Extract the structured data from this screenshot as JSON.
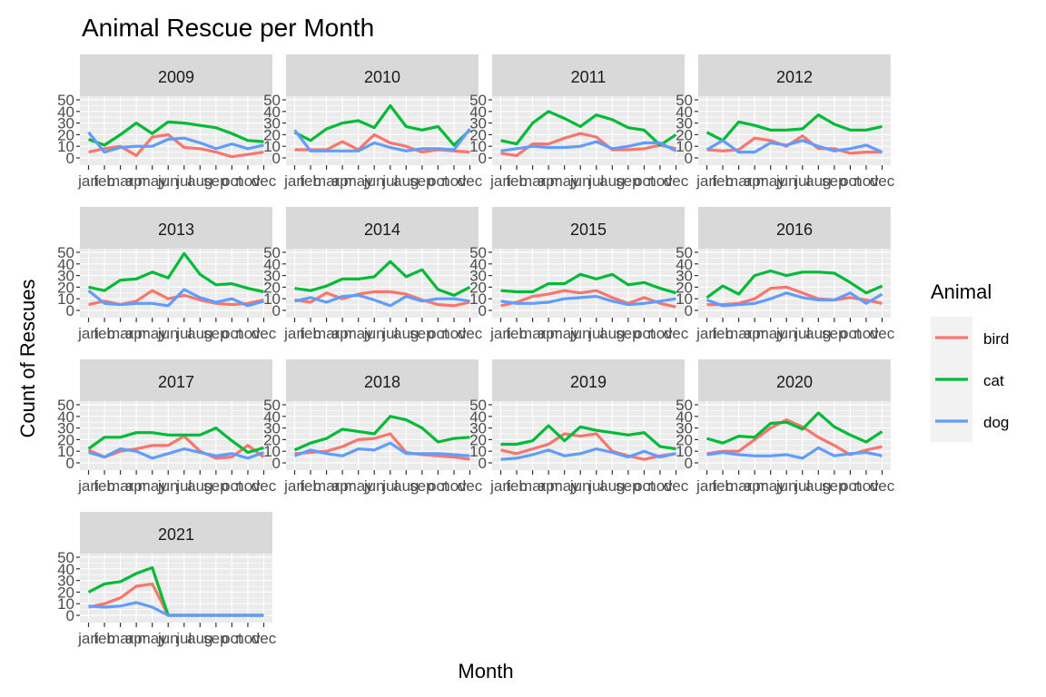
{
  "chart_data": {
    "type": "line",
    "title": "Animal Rescue per Month",
    "xlabel": "Month",
    "ylabel": "Count of Rescues",
    "categories": [
      "jan",
      "feb",
      "mar",
      "apr",
      "may",
      "jun",
      "jul",
      "aug",
      "sep",
      "oct",
      "nov",
      "dec"
    ],
    "ylim": [
      0,
      50
    ],
    "yticks": [
      0,
      10,
      20,
      30,
      40,
      50
    ],
    "ytick_labels": [
      "0",
      "10",
      "20",
      "30",
      "40",
      "50"
    ],
    "facet_by": "year",
    "grid": true,
    "legend": {
      "title": "Animal",
      "position": "right",
      "items": [
        {
          "name": "bird",
          "color": "#F8766D"
        },
        {
          "name": "cat",
          "color": "#00BA38"
        },
        {
          "name": "dog",
          "color": "#619CFF"
        }
      ]
    },
    "panels": [
      {
        "year": "2009",
        "series": [
          {
            "name": "bird",
            "values": [
              5,
              8,
              10,
              2,
              18,
              20,
              9,
              8,
              5,
              1,
              3,
              5
            ]
          },
          {
            "name": "cat",
            "values": [
              16,
              11,
              20,
              30,
              21,
              31,
              30,
              28,
              26,
              21,
              15,
              14
            ]
          },
          {
            "name": "dog",
            "values": [
              22,
              5,
              9,
              10,
              10,
              16,
              17,
              13,
              8,
              12,
              8,
              11
            ]
          }
        ]
      },
      {
        "year": "2010",
        "series": [
          {
            "name": "bird",
            "values": [
              7,
              7,
              7,
              14,
              7,
              20,
              13,
              10,
              5,
              7,
              6,
              5
            ]
          },
          {
            "name": "cat",
            "values": [
              22,
              15,
              25,
              30,
              32,
              26,
              45,
              27,
              24,
              27,
              11,
              24
            ]
          },
          {
            "name": "dog",
            "values": [
              24,
              6,
              6,
              6,
              6,
              13,
              9,
              6,
              8,
              8,
              7,
              25
            ]
          }
        ]
      },
      {
        "year": "2011",
        "series": [
          {
            "name": "bird",
            "values": [
              4,
              2,
              12,
              12,
              17,
              21,
              18,
              7,
              7,
              8,
              11,
              8
            ]
          },
          {
            "name": "cat",
            "values": [
              15,
              12,
              30,
              40,
              34,
              27,
              37,
              33,
              26,
              24,
              11,
              20
            ]
          },
          {
            "name": "dog",
            "values": [
              6,
              8,
              10,
              9,
              9,
              10,
              14,
              8,
              10,
              13,
              13,
              6
            ]
          }
        ]
      },
      {
        "year": "2012",
        "series": [
          {
            "name": "bird",
            "values": [
              7,
              6,
              7,
              17,
              15,
              10,
              19,
              8,
              8,
              4,
              5,
              5
            ]
          },
          {
            "name": "cat",
            "values": [
              22,
              15,
              31,
              28,
              24,
              24,
              25,
              37,
              29,
              24,
              24,
              27
            ]
          },
          {
            "name": "dog",
            "values": [
              7,
              15,
              5,
              5,
              13,
              11,
              15,
              10,
              6,
              8,
              11,
              5
            ]
          }
        ]
      },
      {
        "year": "2013",
        "series": [
          {
            "name": "bird",
            "values": [
              5,
              8,
              5,
              8,
              17,
              10,
              13,
              9,
              6,
              5,
              6,
              9
            ]
          },
          {
            "name": "cat",
            "values": [
              20,
              17,
              26,
              27,
              33,
              28,
              49,
              31,
              22,
              23,
              19,
              16
            ]
          },
          {
            "name": "dog",
            "values": [
              17,
              6,
              5,
              6,
              6,
              4,
              18,
              11,
              7,
              10,
              4,
              8
            ]
          }
        ]
      },
      {
        "year": "2014",
        "series": [
          {
            "name": "bird",
            "values": [
              9,
              7,
              15,
              10,
              14,
              16,
              16,
              14,
              9,
              5,
              4,
              7
            ]
          },
          {
            "name": "cat",
            "values": [
              19,
              17,
              21,
              27,
              27,
              29,
              42,
              29,
              35,
              18,
              13,
              20
            ]
          },
          {
            "name": "dog",
            "values": [
              8,
              11,
              7,
              12,
              13,
              9,
              4,
              12,
              8,
              10,
              10,
              8
            ]
          }
        ]
      },
      {
        "year": "2015",
        "series": [
          {
            "name": "bird",
            "values": [
              4,
              7,
              12,
              14,
              17,
              15,
              17,
              11,
              6,
              11,
              6,
              3
            ]
          },
          {
            "name": "cat",
            "values": [
              17,
              16,
              16,
              23,
              23,
              31,
              27,
              31,
              22,
              24,
              19,
              15
            ]
          },
          {
            "name": "dog",
            "values": [
              8,
              6,
              6,
              7,
              10,
              11,
              12,
              8,
              5,
              6,
              8,
              10
            ]
          }
        ]
      },
      {
        "year": "2016",
        "series": [
          {
            "name": "bird",
            "values": [
              5,
              5,
              6,
              10,
              19,
              20,
              15,
              10,
              9,
              11,
              9,
              6
            ]
          },
          {
            "name": "cat",
            "values": [
              11,
              21,
              14,
              30,
              34,
              30,
              33,
              33,
              32,
              24,
              15,
              21
            ]
          },
          {
            "name": "dog",
            "values": [
              9,
              4,
              5,
              6,
              10,
              15,
              11,
              9,
              9,
              15,
              6,
              14
            ]
          }
        ]
      },
      {
        "year": "2017",
        "series": [
          {
            "name": "bird",
            "values": [
              11,
              5,
              10,
              12,
              15,
              15,
              23,
              10,
              4,
              5,
              15,
              5
            ]
          },
          {
            "name": "cat",
            "values": [
              12,
              22,
              22,
              26,
              26,
              24,
              24,
              24,
              30,
              19,
              9,
              13
            ]
          },
          {
            "name": "dog",
            "values": [
              9,
              5,
              12,
              10,
              4,
              8,
              12,
              9,
              6,
              8,
              4,
              9
            ]
          }
        ]
      },
      {
        "year": "2018",
        "series": [
          {
            "name": "bird",
            "values": [
              8,
              9,
              10,
              14,
              20,
              21,
              25,
              9,
              7,
              6,
              5,
              3
            ]
          },
          {
            "name": "cat",
            "values": [
              11,
              17,
              21,
              29,
              27,
              25,
              40,
              37,
              30,
              18,
              21,
              22
            ]
          },
          {
            "name": "dog",
            "values": [
              6,
              11,
              8,
              6,
              12,
              11,
              17,
              8,
              8,
              8,
              7,
              6
            ]
          }
        ]
      },
      {
        "year": "2019",
        "series": [
          {
            "name": "bird",
            "values": [
              11,
              8,
              12,
              16,
              25,
              23,
              25,
              10,
              6,
              3,
              6,
              8
            ]
          },
          {
            "name": "cat",
            "values": [
              16,
              16,
              19,
              32,
              19,
              31,
              28,
              26,
              24,
              26,
              14,
              12
            ]
          },
          {
            "name": "dog",
            "values": [
              3,
              4,
              7,
              11,
              6,
              8,
              12,
              9,
              5,
              10,
              5,
              8
            ]
          }
        ]
      },
      {
        "year": "2020",
        "series": [
          {
            "name": "bird",
            "values": [
              8,
              10,
              10,
              20,
              30,
              37,
              31,
              22,
              15,
              7,
              11,
              14
            ]
          },
          {
            "name": "cat",
            "values": [
              21,
              17,
              23,
              22,
              34,
              35,
              29,
              43,
              31,
              24,
              18,
              27
            ]
          },
          {
            "name": "dog",
            "values": [
              7,
              9,
              7,
              6,
              6,
              7,
              4,
              13,
              6,
              8,
              9,
              6
            ]
          }
        ]
      },
      {
        "year": "2021",
        "series": [
          {
            "name": "bird",
            "values": [
              7,
              10,
              15,
              25,
              27,
              0,
              0,
              0,
              0,
              0,
              0,
              0
            ]
          },
          {
            "name": "cat",
            "values": [
              20,
              27,
              29,
              36,
              41,
              0,
              0,
              0,
              0,
              0,
              0,
              0
            ]
          },
          {
            "name": "dog",
            "values": [
              8,
              7,
              8,
              11,
              7,
              0,
              0,
              0,
              0,
              0,
              0,
              0
            ]
          }
        ]
      }
    ]
  }
}
